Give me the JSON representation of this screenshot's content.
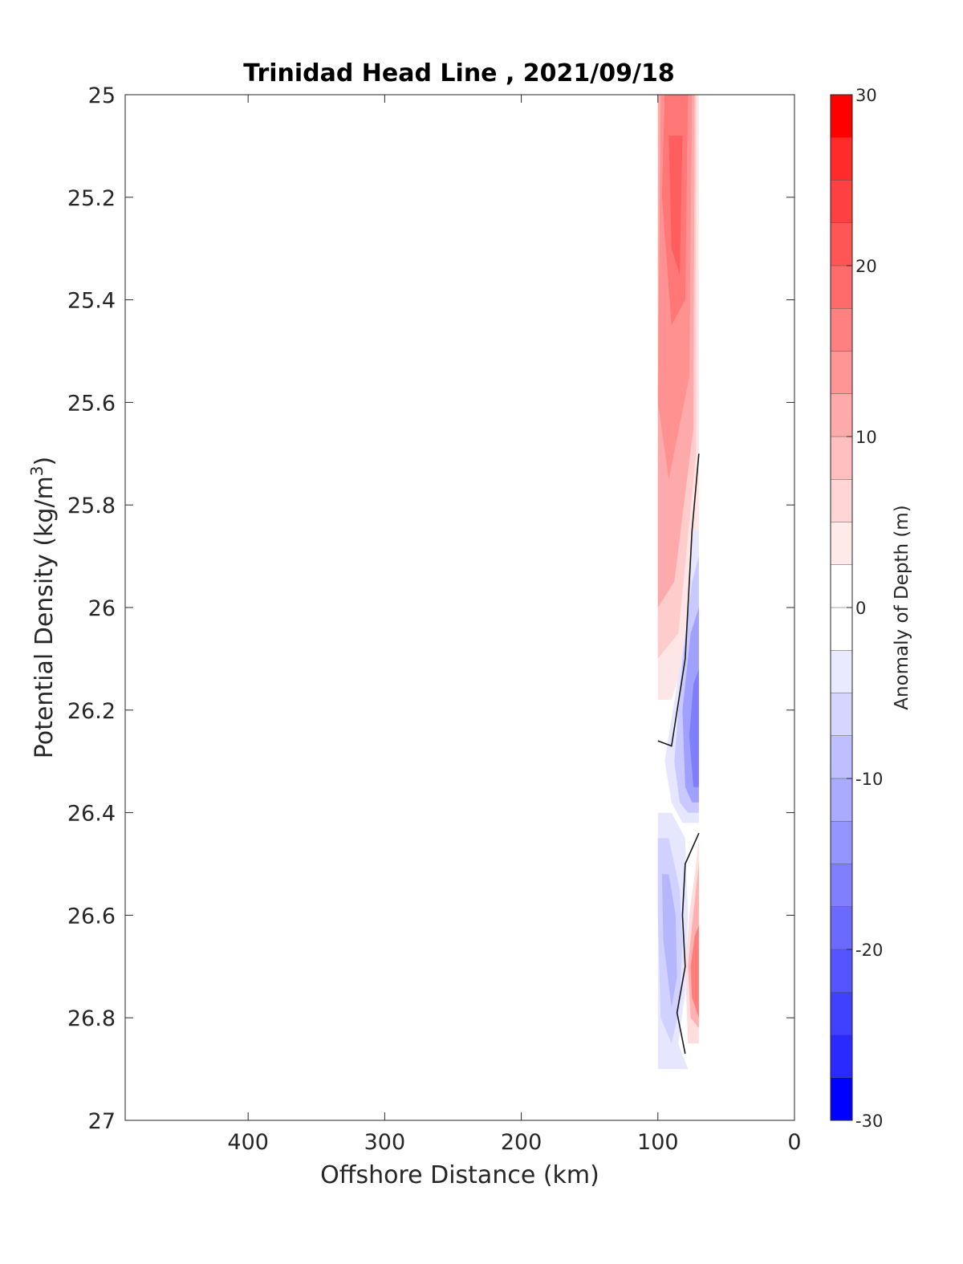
{
  "chart_data": {
    "type": "heatmap",
    "title": "Trinidad Head Line , 2021/09/18",
    "xlabel": "Offshore Distance (km)",
    "ylabel_main": "Potential Density (kg/m",
    "ylabel_sup": "3",
    "ylabel_close": ")",
    "x_reversed": true,
    "xlim": [
      0,
      490
    ],
    "xticks": [
      400,
      300,
      200,
      100,
      0
    ],
    "xtick_labels": [
      "400",
      "300",
      "200",
      "100",
      "0"
    ],
    "ylim": [
      25,
      27
    ],
    "y_reversed": true,
    "yticks": [
      25,
      25.2,
      25.4,
      25.6,
      25.8,
      26,
      26.2,
      26.4,
      26.6,
      26.8,
      27
    ],
    "ytick_labels": [
      "25",
      "25.2",
      "25.4",
      "25.6",
      "25.8",
      "26",
      "26.2",
      "26.4",
      "26.6",
      "26.8",
      "27"
    ],
    "grid": false,
    "colorbar": {
      "label": "Anomaly of Depth (m)",
      "clim": [
        -30,
        30
      ],
      "ticks": [
        30,
        20,
        10,
        0,
        -10,
        -20,
        -30
      ],
      "tick_labels": [
        "30",
        "20",
        "10",
        "0",
        "-10",
        "-20",
        "-30"
      ],
      "levels_step": 2.5,
      "colormap": "blue-white-red",
      "color_min": "#0000ff",
      "color_mid": "#ffffff",
      "color_max": "#ff0000"
    },
    "anomaly_regions": [
      {
        "sign": "positive",
        "max_value": 20,
        "x_range_km": [
          70,
          100
        ],
        "density_range": [
          25.0,
          26.18
        ]
      },
      {
        "sign": "negative",
        "min_value": -16,
        "x_range_km": [
          70,
          95
        ],
        "density_range": [
          25.85,
          26.42
        ]
      },
      {
        "sign": "negative",
        "min_value": -9,
        "x_range_km": [
          78,
          100
        ],
        "density_range": [
          26.4,
          26.9
        ]
      },
      {
        "sign": "positive",
        "max_value": 17,
        "x_range_km": [
          70,
          82
        ],
        "density_range": [
          26.45,
          26.85
        ]
      }
    ],
    "zero_contours": [
      {
        "x_km": [
          70,
          75,
          80,
          90,
          100
        ],
        "density": [
          25.7,
          25.85,
          26.1,
          26.27,
          26.26
        ]
      },
      {
        "x_km": [
          70,
          80,
          82,
          80,
          86,
          80
        ],
        "density": [
          26.44,
          26.5,
          26.6,
          26.7,
          26.79,
          26.87
        ]
      }
    ],
    "colors": {
      "contour": "#1a1a1a",
      "axis": "#262626",
      "background": "#ffffff"
    }
  }
}
